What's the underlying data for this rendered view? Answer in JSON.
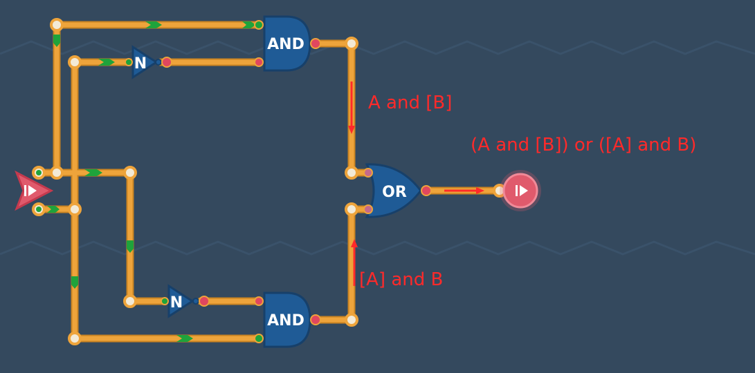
{
  "colors": {
    "background": "#34495e",
    "wire": "#eea43b",
    "wire_dark": "#c98322",
    "signal_arrow": "#1fa33b",
    "gate_fill": "#1f5b96",
    "gate_stroke": "#17406a",
    "pin_red": "#e0475f",
    "io_red": "#e05a6c",
    "annotation": "#ff2a2a"
  },
  "gates": {
    "and_top": "AND",
    "and_bottom": "AND",
    "not_top": "N",
    "not_bottom": "N",
    "or": "OR"
  },
  "annotations": {
    "top_branch": "A and [B]",
    "bottom_branch": "[A] and B",
    "output": "(A and [B]) or ([A] and B)"
  },
  "icons": {
    "input": "play-step-icon",
    "output": "play-step-icon"
  }
}
